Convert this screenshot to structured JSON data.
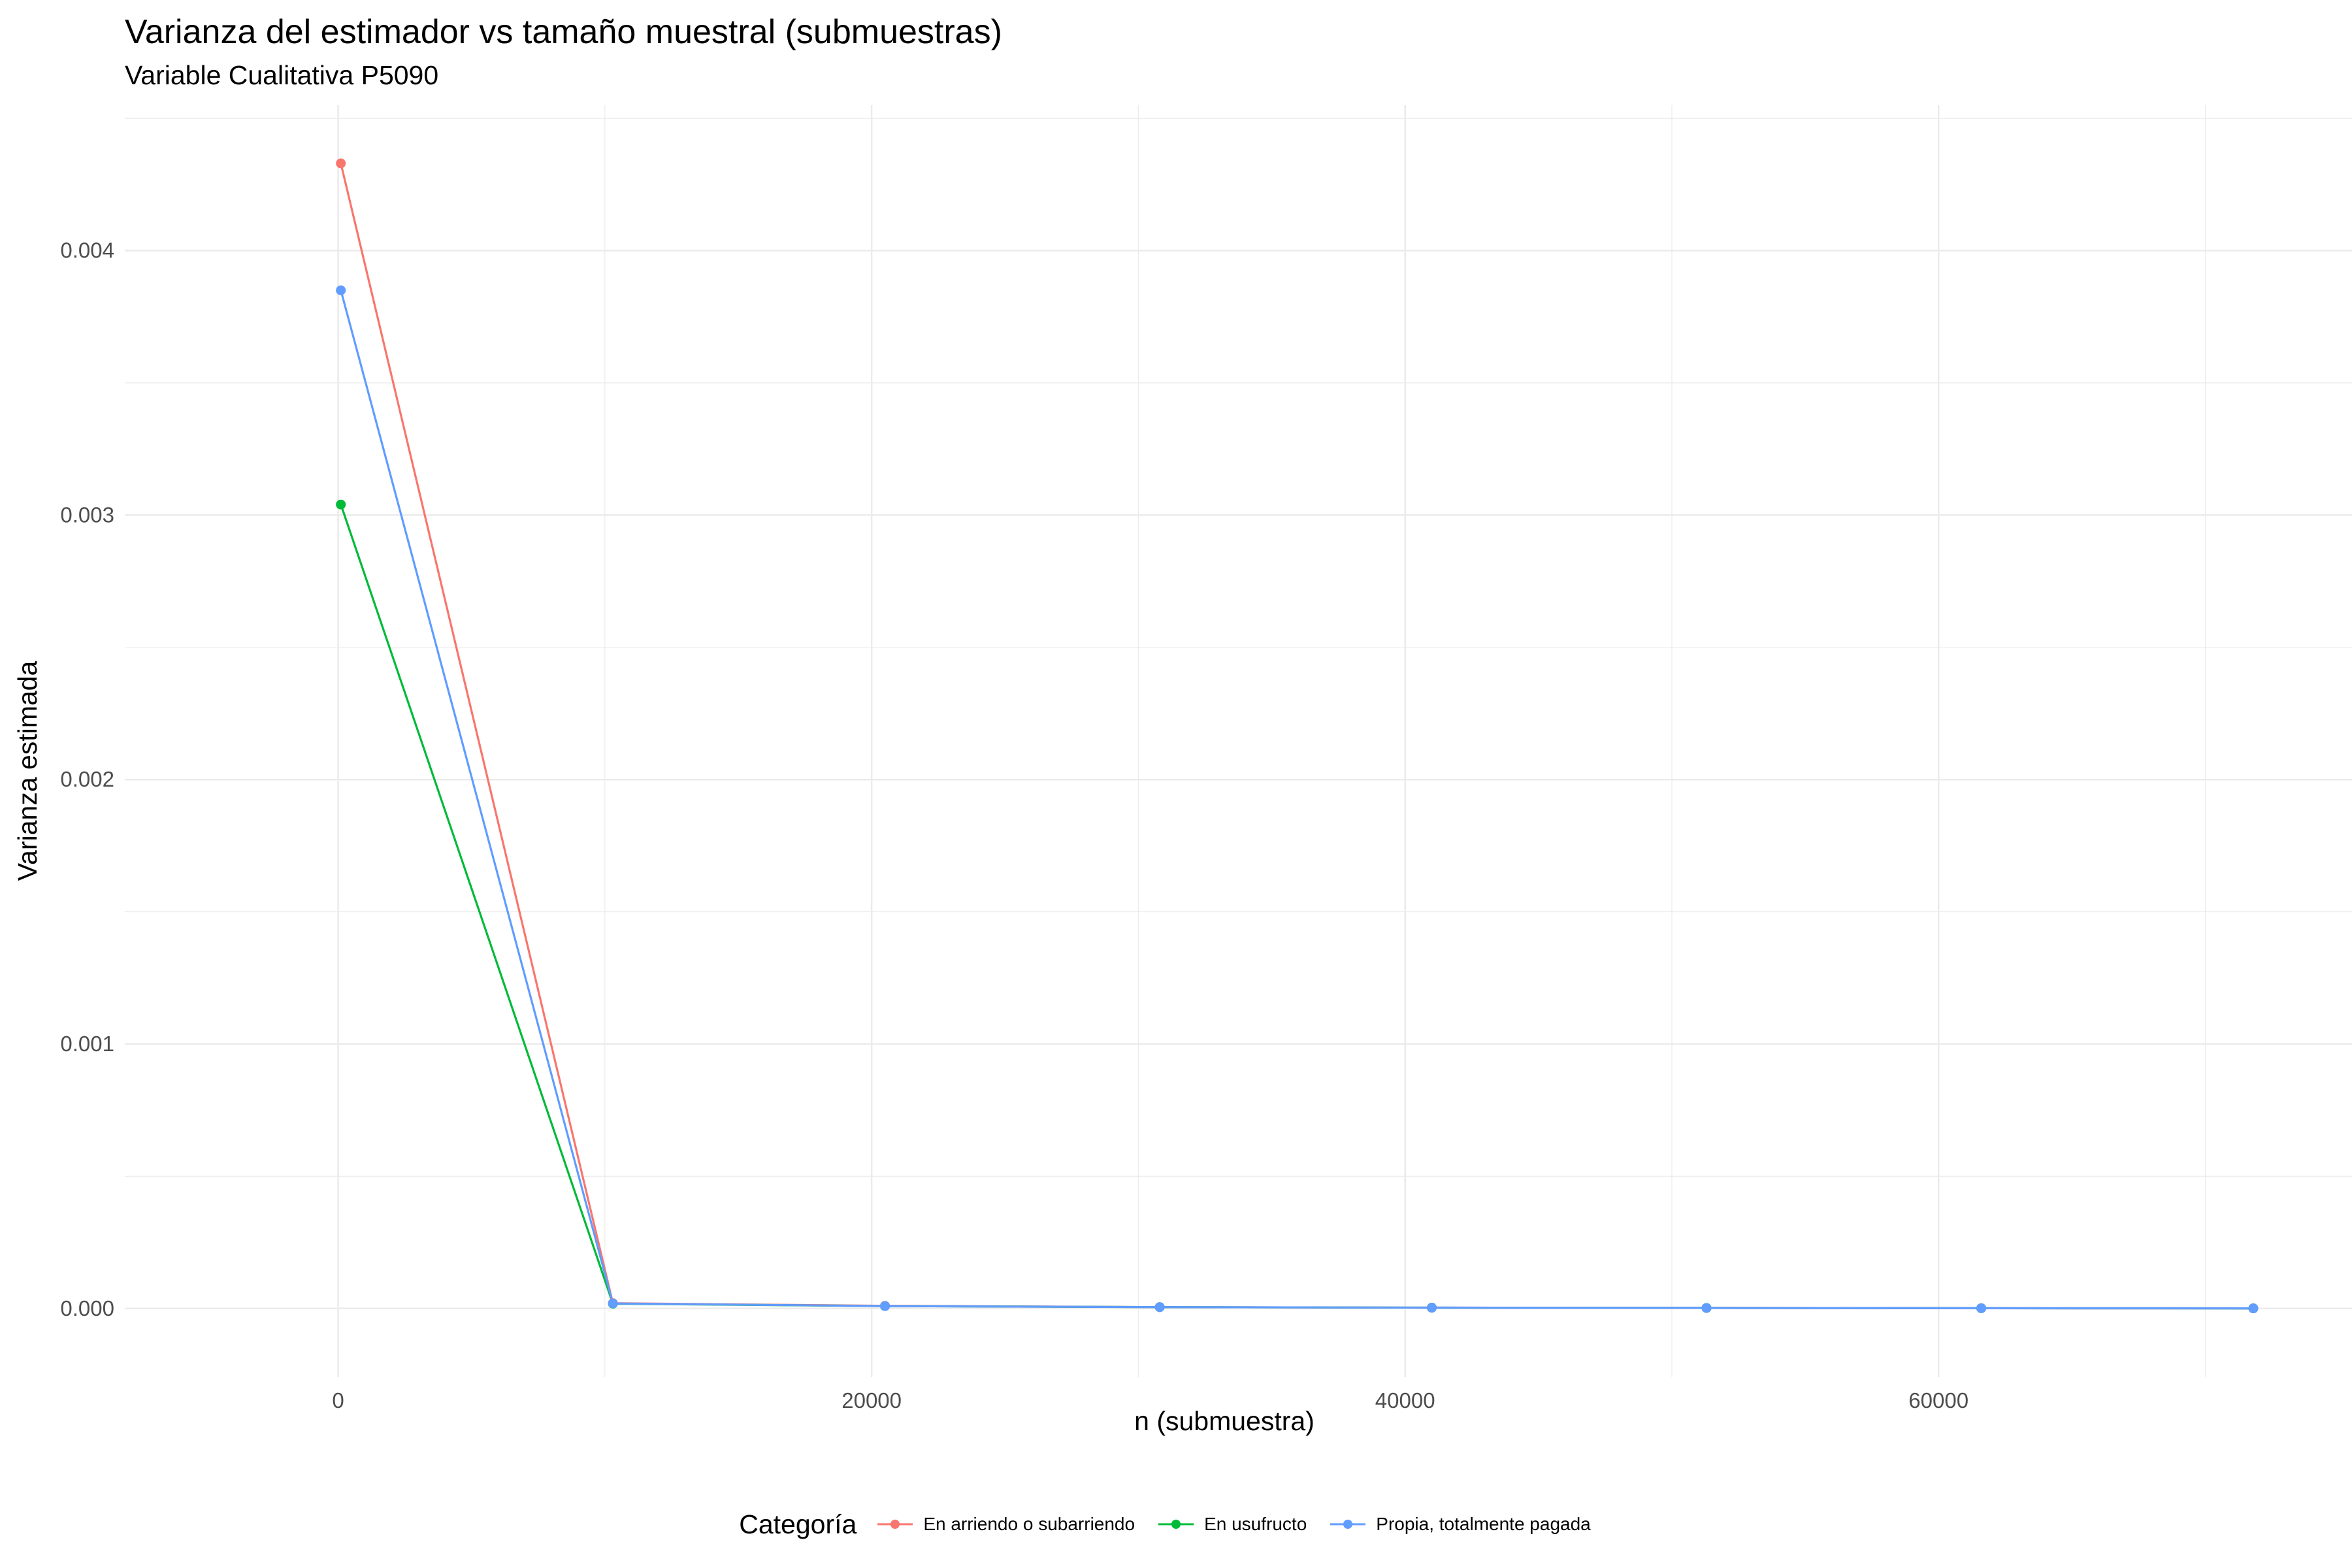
{
  "chart_data": {
    "type": "line",
    "title": "Varianza del estimador vs tamaño muestral (submuestras)",
    "subtitle": "Variable Cualitativa P5090",
    "xlabel": "n (submuestra)",
    "ylabel": "Varianza estimada",
    "xlim": [
      -8000,
      75500
    ],
    "ylim": [
      -0.00026,
      0.00455
    ],
    "x_ticks": [
      0,
      20000,
      40000,
      60000
    ],
    "x_tick_labels": [
      "0",
      "20000",
      "40000",
      "60000"
    ],
    "y_ticks": [
      0,
      0.001,
      0.002,
      0.003,
      0.004
    ],
    "y_tick_labels": [
      "0.000",
      "0.001",
      "0.002",
      "0.003",
      "0.004"
    ],
    "grid": true,
    "legend": {
      "title": "Categoría",
      "position": "bottom"
    },
    "series": [
      {
        "name": "En arriendo o subarriendo",
        "color": "#F8766D",
        "x": [
          100,
          10300,
          20500,
          30800,
          41000,
          51300,
          61600,
          71800
        ],
        "y": [
          0.00433,
          2e-05,
          1e-05,
          5e-06,
          3e-06,
          2e-06,
          1e-06,
          5e-07
        ]
      },
      {
        "name": "En usufructo",
        "color": "#00BA38",
        "x": [
          100,
          10300,
          20500,
          30800,
          41000,
          51300,
          61600,
          71800
        ],
        "y": [
          0.00304,
          1.8e-05,
          9e-06,
          5e-06,
          3e-06,
          2e-06,
          1e-06,
          5e-07
        ]
      },
      {
        "name": "Propia, totalmente pagada",
        "color": "#619CFF",
        "x": [
          100,
          10300,
          20500,
          30800,
          41000,
          51300,
          61600,
          71800
        ],
        "y": [
          0.00385,
          1.9e-05,
          9e-06,
          5e-06,
          3e-06,
          2e-06,
          1e-06,
          5e-07
        ]
      }
    ]
  }
}
